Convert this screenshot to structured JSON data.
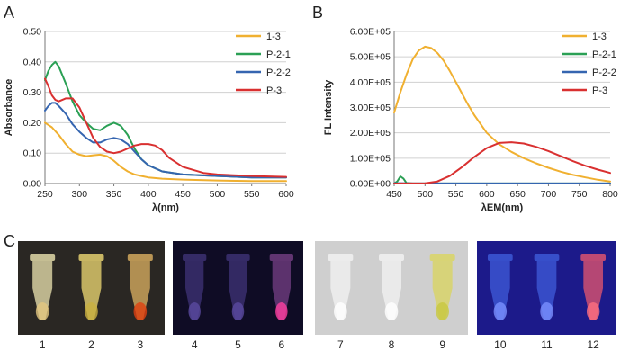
{
  "panel_letters": [
    "A",
    "B",
    "C"
  ],
  "chart_data": [
    {
      "type": "line",
      "panel": "A",
      "xlabel": "λ(nm)",
      "ylabel": "Absorbance",
      "xlim": [
        250,
        600
      ],
      "ylim": [
        0,
        0.5
      ],
      "xticks": [
        250,
        300,
        350,
        400,
        450,
        500,
        550,
        600
      ],
      "xtick_labels": [
        "250",
        "300",
        "350",
        "400",
        "450",
        "500",
        "550",
        "600"
      ],
      "yticks": [
        0,
        0.1,
        0.2,
        0.3,
        0.4,
        0.5
      ],
      "ytick_labels": [
        "0.00",
        "0.10",
        "0.20",
        "0.30",
        "0.40",
        "0.50"
      ],
      "grid": "horizontal",
      "legend": "top-right",
      "series": [
        {
          "name": "1-3",
          "color": "#F0B030",
          "x": [
            250,
            260,
            270,
            280,
            290,
            300,
            310,
            320,
            330,
            340,
            350,
            360,
            370,
            380,
            390,
            400,
            420,
            450,
            500,
            550,
            600
          ],
          "y": [
            0.2,
            0.185,
            0.16,
            0.13,
            0.105,
            0.095,
            0.09,
            0.093,
            0.095,
            0.09,
            0.075,
            0.055,
            0.04,
            0.03,
            0.025,
            0.02,
            0.016,
            0.013,
            0.01,
            0.008,
            0.008
          ]
        },
        {
          "name": "P-2-1",
          "color": "#2BA055",
          "x": [
            250,
            255,
            260,
            265,
            270,
            280,
            290,
            300,
            310,
            320,
            330,
            340,
            350,
            360,
            370,
            380,
            390,
            400,
            420,
            450,
            500,
            550,
            600
          ],
          "y": [
            0.34,
            0.37,
            0.39,
            0.4,
            0.385,
            0.33,
            0.27,
            0.225,
            0.2,
            0.18,
            0.175,
            0.19,
            0.2,
            0.19,
            0.16,
            0.115,
            0.08,
            0.06,
            0.04,
            0.03,
            0.025,
            0.02,
            0.02
          ]
        },
        {
          "name": "P-2-2",
          "color": "#3565B0",
          "x": [
            250,
            255,
            260,
            265,
            270,
            280,
            290,
            300,
            310,
            320,
            330,
            340,
            350,
            360,
            370,
            380,
            390,
            400,
            420,
            450,
            500,
            550,
            600
          ],
          "y": [
            0.24,
            0.255,
            0.265,
            0.265,
            0.255,
            0.23,
            0.195,
            0.17,
            0.15,
            0.135,
            0.135,
            0.145,
            0.15,
            0.145,
            0.13,
            0.105,
            0.08,
            0.06,
            0.04,
            0.03,
            0.025,
            0.02,
            0.02
          ]
        },
        {
          "name": "P-3",
          "color": "#D93030",
          "x": [
            250,
            255,
            260,
            265,
            270,
            280,
            290,
            300,
            310,
            320,
            330,
            340,
            350,
            360,
            370,
            380,
            390,
            400,
            410,
            420,
            430,
            450,
            480,
            500,
            550,
            600
          ],
          "y": [
            0.345,
            0.32,
            0.29,
            0.275,
            0.27,
            0.28,
            0.28,
            0.25,
            0.2,
            0.15,
            0.12,
            0.105,
            0.1,
            0.105,
            0.115,
            0.125,
            0.13,
            0.13,
            0.125,
            0.11,
            0.085,
            0.055,
            0.035,
            0.03,
            0.025,
            0.022
          ]
        }
      ]
    },
    {
      "type": "line",
      "panel": "B",
      "xlabel": "λEM(nm)",
      "ylabel": "FL Intensity",
      "xlim": [
        450,
        800
      ],
      "ylim": [
        0,
        600000
      ],
      "xticks": [
        450,
        500,
        550,
        600,
        650,
        700,
        750,
        800
      ],
      "xtick_labels": [
        "450",
        "500",
        "550",
        "600",
        "650",
        "700",
        "750",
        "800"
      ],
      "yticks": [
        0,
        100000,
        200000,
        300000,
        400000,
        500000,
        600000
      ],
      "ytick_labels": [
        "0.00E+00",
        "1.00E+05",
        "2.00E+05",
        "3.00E+05",
        "4.00E+05",
        "5.00E+05",
        "6.00E+05"
      ],
      "grid": "horizontal",
      "legend": "top-right",
      "series": [
        {
          "name": "1-3",
          "color": "#F0B030",
          "x": [
            450,
            460,
            470,
            480,
            490,
            500,
            510,
            520,
            530,
            540,
            550,
            560,
            570,
            580,
            590,
            600,
            620,
            640,
            660,
            680,
            700,
            720,
            740,
            760,
            780,
            800
          ],
          "y": [
            280000,
            360000,
            430000,
            490000,
            525000,
            540000,
            535000,
            515000,
            485000,
            445000,
            400000,
            355000,
            310000,
            270000,
            235000,
            200000,
            155000,
            125000,
            100000,
            80000,
            62000,
            47000,
            34000,
            24000,
            15000,
            8000
          ]
        },
        {
          "name": "P-2-1",
          "color": "#2BA055",
          "x": [
            450,
            455,
            460,
            465,
            470,
            480,
            500,
            600,
            700,
            800
          ],
          "y": [
            0,
            8000,
            28000,
            20000,
            2000,
            500,
            400,
            300,
            300,
            300
          ]
        },
        {
          "name": "P-2-2",
          "color": "#3565B0",
          "x": [
            450,
            460,
            470,
            500,
            600,
            700,
            800
          ],
          "y": [
            800,
            1500,
            800,
            500,
            400,
            300,
            300
          ]
        },
        {
          "name": "P-3",
          "color": "#D93030",
          "x": [
            450,
            500,
            520,
            540,
            560,
            580,
            600,
            620,
            640,
            660,
            680,
            700,
            720,
            740,
            760,
            780,
            800
          ],
          "y": [
            0,
            1000,
            8000,
            30000,
            65000,
            105000,
            140000,
            160000,
            163000,
            158000,
            145000,
            128000,
            108000,
            88000,
            70000,
            55000,
            42000
          ]
        }
      ]
    }
  ],
  "photos": {
    "labels": [
      "1",
      "2",
      "3",
      "4",
      "5",
      "6",
      "7",
      "8",
      "9",
      "10",
      "11",
      "12"
    ],
    "groups": [
      {
        "background": "#2a2723",
        "tube_colors": [
          "#d6cfa0",
          "#d9c76a",
          "#c9a25a"
        ],
        "accent_colors": [
          "#e2c780",
          "#c9b040",
          "#e04010"
        ]
      },
      {
        "background": "#0f0c25",
        "tube_colors": [
          "#3a2f6e",
          "#3a2f6e",
          "#6a3a7a"
        ],
        "accent_colors": [
          "#5a4aa0",
          "#5a4aa0",
          "#ff3fa0"
        ]
      },
      {
        "background": "#cfcfcf",
        "tube_colors": [
          "#eeeeee",
          "#eeeeee",
          "#d8d46a"
        ],
        "accent_colors": [
          "#ffffff",
          "#ffffff",
          "#c8c840"
        ]
      },
      {
        "background": "#1c1a8a",
        "tube_colors": [
          "#3b55d0",
          "#3b55d0",
          "#d05070"
        ],
        "accent_colors": [
          "#7a90ff",
          "#7a90ff",
          "#ff6f7f"
        ]
      }
    ]
  }
}
